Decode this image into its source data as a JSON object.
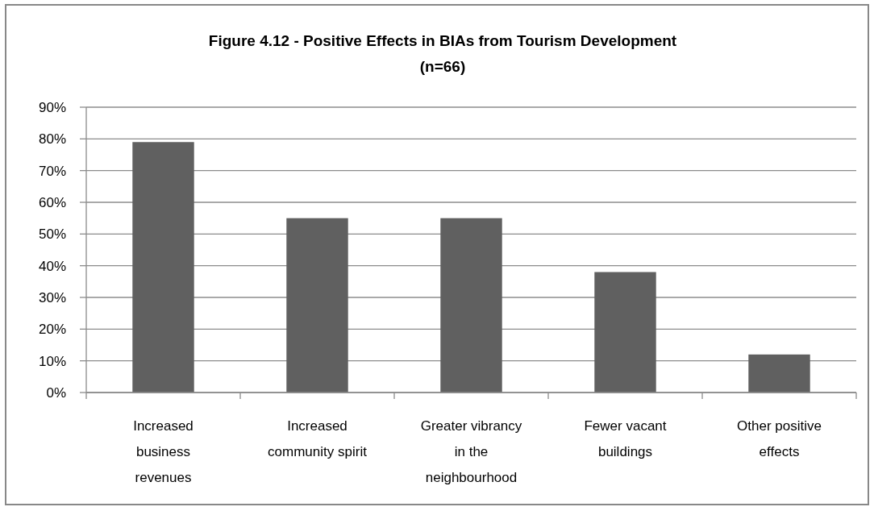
{
  "chart_data": {
    "type": "bar",
    "title": "Figure 4.12 - Positive Effects in BIAs from Tourism Development\n(n=66)",
    "categories": [
      "Increased business revenues",
      "Increased community spirit",
      "Greater vibrancy in the neighbourhood",
      "Fewer vacant buildings",
      "Other positive effects"
    ],
    "values": [
      79,
      55,
      55,
      38,
      12
    ],
    "color": "#606060",
    "ylim": [
      0,
      90
    ],
    "yticks": [
      {
        "value": 0,
        "label": "0%"
      },
      {
        "value": 10,
        "label": "10%"
      },
      {
        "value": 20,
        "label": "20%"
      },
      {
        "value": 30,
        "label": "30%"
      },
      {
        "value": 40,
        "label": "40%"
      },
      {
        "value": 50,
        "label": "50%"
      },
      {
        "value": 60,
        "label": "60%"
      },
      {
        "value": 70,
        "label": "70%"
      },
      {
        "value": 80,
        "label": "80%"
      },
      {
        "value": 90,
        "label": "90%"
      }
    ],
    "grid": "y"
  }
}
